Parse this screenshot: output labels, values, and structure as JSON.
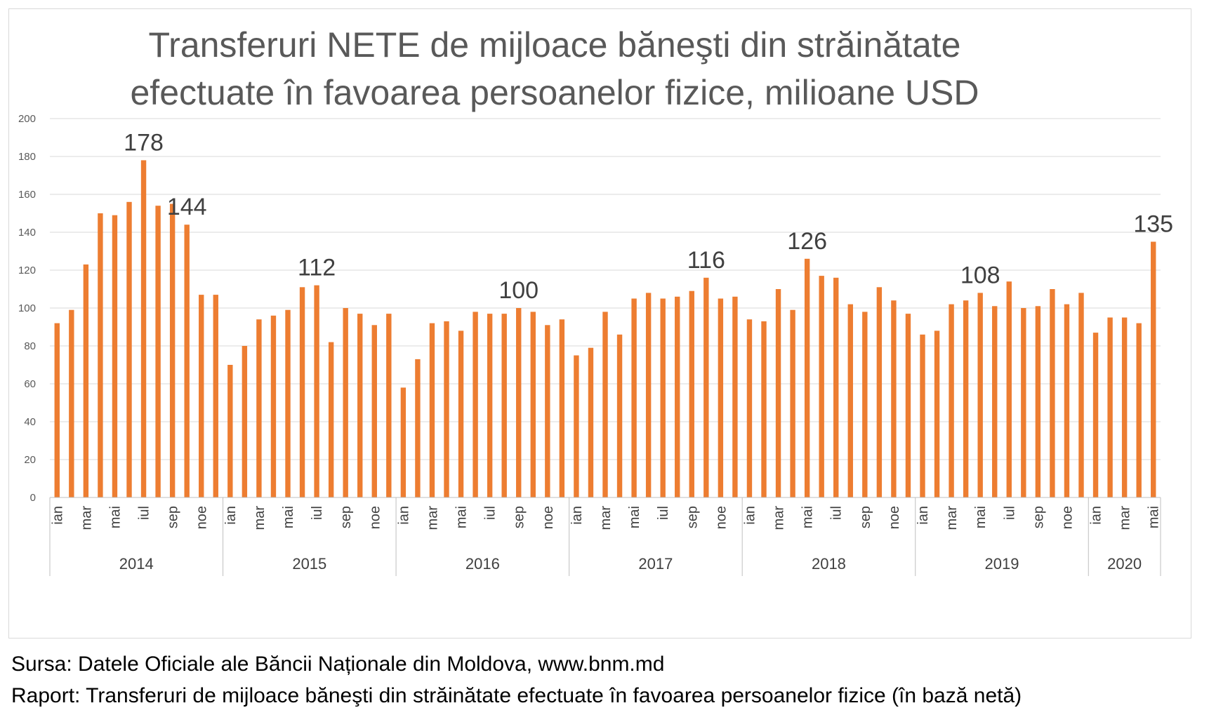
{
  "chart_data": {
    "type": "bar",
    "title_lines": [
      "Transferuri NETE de mijloace băneşti din străinătate",
      "efectuate în favoarea persoanelor fizice, milioane USD"
    ],
    "xlabel": "",
    "ylabel": "",
    "ylim": [
      0,
      200
    ],
    "yticks": [
      0,
      20,
      40,
      60,
      80,
      100,
      120,
      140,
      160,
      180,
      200
    ],
    "grid": true,
    "bar_color": "#ED7D31",
    "years": [
      {
        "label": "2014",
        "months": 12,
        "values": [
          92,
          99,
          123,
          150,
          149,
          156,
          178,
          154,
          155,
          144,
          107,
          107
        ]
      },
      {
        "label": "2015",
        "months": 12,
        "values": [
          70,
          80,
          94,
          96,
          99,
          111,
          112,
          82,
          100,
          97,
          91,
          97
        ]
      },
      {
        "label": "2016",
        "months": 12,
        "values": [
          58,
          73,
          92,
          93,
          88,
          98,
          97,
          97,
          100,
          98,
          91,
          94
        ]
      },
      {
        "label": "2017",
        "months": 12,
        "values": [
          75,
          79,
          98,
          86,
          105,
          108,
          105,
          106,
          109,
          116,
          105,
          106
        ]
      },
      {
        "label": "2018",
        "months": 12,
        "values": [
          94,
          93,
          110,
          99,
          126,
          117,
          116,
          102,
          98,
          111,
          104,
          97
        ]
      },
      {
        "label": "2019",
        "months": 12,
        "values": [
          86,
          88,
          102,
          104,
          108,
          101,
          114,
          100,
          101,
          110,
          102,
          108
        ]
      },
      {
        "label": "2020",
        "months": 5,
        "values": [
          87,
          95,
          95,
          92,
          135
        ]
      }
    ],
    "month_labels": [
      "ian",
      "",
      "mar",
      "",
      "mai",
      "",
      "iul",
      "",
      "sep",
      "",
      "noe",
      ""
    ],
    "data_labels": [
      {
        "year_index": 0,
        "month_index": 6,
        "text": "178"
      },
      {
        "year_index": 0,
        "month_index": 9,
        "text": "144"
      },
      {
        "year_index": 1,
        "month_index": 6,
        "text": "112"
      },
      {
        "year_index": 2,
        "month_index": 8,
        "text": "100"
      },
      {
        "year_index": 3,
        "month_index": 9,
        "text": "116"
      },
      {
        "year_index": 4,
        "month_index": 4,
        "text": "126"
      },
      {
        "year_index": 5,
        "month_index": 4,
        "text": "108"
      },
      {
        "year_index": 6,
        "month_index": 4,
        "text": "135"
      }
    ]
  },
  "footer": {
    "source": "Sursa: Datele Oficiale ale Băncii Naționale din Moldova, www.bnm.md",
    "report": "Raport: Transferuri de mijloace băneşti din străinătate efectuate în favoarea persoanelor fizice (în bază netă)"
  }
}
